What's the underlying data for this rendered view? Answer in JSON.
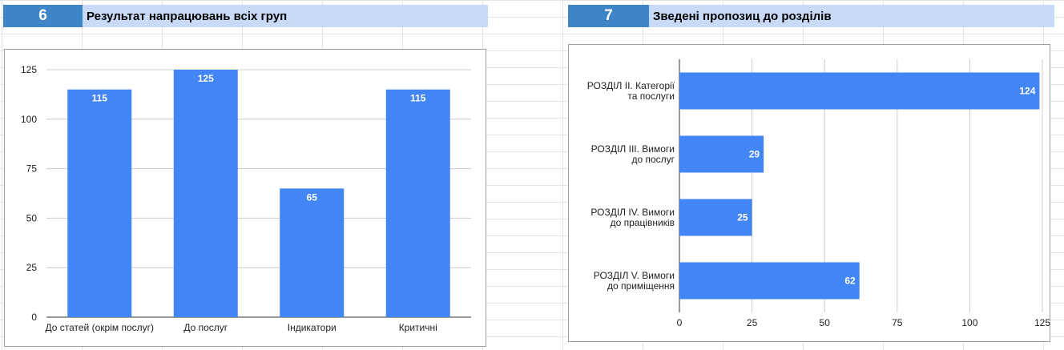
{
  "sections": [
    {
      "number": "6",
      "title": "Результат напрацювань всіх груп"
    },
    {
      "number": "7",
      "title": "Зведені пропозиц до розділів"
    }
  ],
  "colors": {
    "bar": "#4285f4",
    "number_cell": "#3d85c6",
    "title_cell": "#c9daf8",
    "gridline": "#cccccc"
  },
  "chart_data": [
    {
      "type": "bar",
      "orientation": "vertical",
      "categories": [
        "До статей (окрім послуг)",
        "До послуг",
        "Індикатори",
        "Критичні"
      ],
      "values": [
        115,
        125,
        65,
        115
      ],
      "ylim": [
        0,
        125
      ],
      "yticks": [
        "0",
        "25",
        "50",
        "75",
        "100",
        "125"
      ],
      "grid": true,
      "legend": "none",
      "data_labels": [
        "115",
        "125",
        "65",
        "115"
      ]
    },
    {
      "type": "bar",
      "orientation": "horizontal",
      "categories": [
        [
          "РОЗДІЛ ІІ. Категорії",
          "та послуги"
        ],
        [
          "РОЗДІЛ ІІІ. Вимоги",
          "до послуг"
        ],
        [
          "РОЗДІЛ IV. Вимоги",
          "до працівників"
        ],
        [
          "РОЗДІЛ V. Вимоги",
          "до приміщення"
        ]
      ],
      "values": [
        124,
        29,
        25,
        62
      ],
      "xlim": [
        0,
        125
      ],
      "xticks": [
        "0",
        "25",
        "50",
        "75",
        "100",
        "125"
      ],
      "grid": true,
      "legend": "none",
      "data_labels": [
        "124",
        "29",
        "25",
        "62"
      ]
    }
  ]
}
